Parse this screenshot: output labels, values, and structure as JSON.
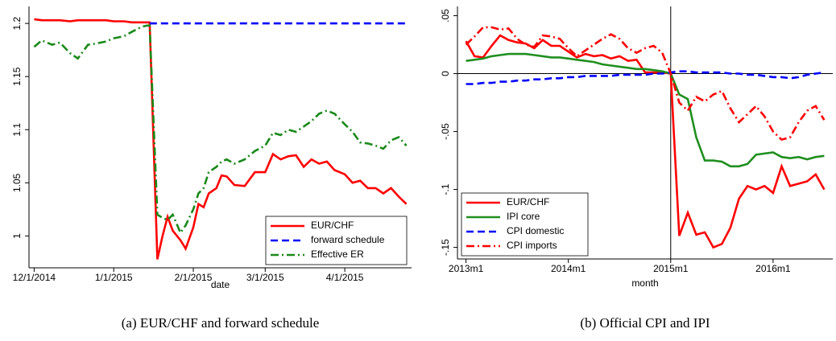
{
  "chart_data": [
    {
      "type": "line",
      "caption": "(a) EUR/CHF and forward schedule",
      "x_label": "date",
      "x": [
        "2014-12-01",
        "2014-12-04",
        "2014-12-08",
        "2014-12-11",
        "2014-12-15",
        "2014-12-18",
        "2014-12-22",
        "2014-12-25",
        "2014-12-29",
        "2015-01-01",
        "2015-01-05",
        "2015-01-08",
        "2015-01-12",
        "2015-01-14",
        "2015-01-15",
        "2015-01-18",
        "2015-01-20",
        "2015-01-22",
        "2015-01-24",
        "2015-01-27",
        "2015-01-29",
        "2015-02-01",
        "2015-02-03",
        "2015-02-05",
        "2015-02-07",
        "2015-02-10",
        "2015-02-12",
        "2015-02-14",
        "2015-02-17",
        "2015-02-21",
        "2015-02-25",
        "2015-03-01",
        "2015-03-04",
        "2015-03-07",
        "2015-03-10",
        "2015-03-13",
        "2015-03-16",
        "2015-03-19",
        "2015-03-22",
        "2015-03-25",
        "2015-03-28",
        "2015-04-01",
        "2015-04-04",
        "2015-04-07",
        "2015-04-10",
        "2015-04-13",
        "2015-04-16",
        "2015-04-19",
        "2015-04-22",
        "2015-04-25"
      ],
      "series": [
        {
          "name": "EUR/CHF",
          "color": "#ff0000",
          "linestyle": "solid",
          "values": [
            1.204,
            1.203,
            1.203,
            1.203,
            1.202,
            1.203,
            1.203,
            1.203,
            1.203,
            1.202,
            1.202,
            1.201,
            1.201,
            1.201,
            1.201,
            0.978,
            1.0,
            1.018,
            1.005,
            0.996,
            0.988,
            1.008,
            1.03,
            1.027,
            1.04,
            1.045,
            1.057,
            1.056,
            1.048,
            1.047,
            1.06,
            1.06,
            1.077,
            1.072,
            1.075,
            1.076,
            1.065,
            1.072,
            1.068,
            1.07,
            1.062,
            1.058,
            1.05,
            1.052,
            1.045,
            1.045,
            1.04,
            1.045,
            1.037,
            1.03
          ]
        },
        {
          "name": "forward schedule",
          "color": "#0000ff",
          "linestyle": "dash",
          "values": [
            null,
            null,
            null,
            null,
            null,
            null,
            null,
            null,
            null,
            null,
            null,
            null,
            null,
            null,
            1.2,
            1.2,
            1.2,
            1.2,
            1.2,
            1.2,
            1.2,
            1.2,
            1.2,
            1.2,
            1.2,
            1.2,
            1.2,
            1.2,
            1.2,
            1.2,
            1.2,
            1.2,
            1.2,
            1.2,
            1.2,
            1.2,
            1.2,
            1.2,
            1.2,
            1.2,
            1.2,
            1.2,
            1.2,
            1.2,
            1.2,
            1.2,
            1.2,
            1.2,
            1.2,
            1.2
          ]
        },
        {
          "name": "Effective ER",
          "color": "#1a8a1a",
          "linestyle": "dashdot",
          "values": [
            1.178,
            1.184,
            1.18,
            1.182,
            1.172,
            1.167,
            1.18,
            1.181,
            1.183,
            1.186,
            1.188,
            1.192,
            1.197,
            1.198,
            1.198,
            1.02,
            1.017,
            1.015,
            1.02,
            1.003,
            1.01,
            1.025,
            1.04,
            1.045,
            1.06,
            1.065,
            1.07,
            1.072,
            1.068,
            1.072,
            1.08,
            1.085,
            1.097,
            1.095,
            1.1,
            1.098,
            1.103,
            1.108,
            1.115,
            1.118,
            1.115,
            1.105,
            1.098,
            1.088,
            1.087,
            1.085,
            1.082,
            1.09,
            1.093,
            1.085
          ]
        }
      ],
      "xlim": [
        "2014-11-29",
        "2015-04-27"
      ],
      "xticks": [
        {
          "value": "2014-12-01",
          "label": "12/1/2014"
        },
        {
          "value": "2015-01-01",
          "label": "1/1/2015"
        },
        {
          "value": "2015-02-01",
          "label": "2/1/2015"
        },
        {
          "value": "2015-03-01",
          "label": "3/1/2015"
        },
        {
          "value": "2015-04-01",
          "label": "4/1/2015"
        }
      ],
      "ylim": [
        0.97,
        1.216
      ],
      "yticks": [
        1,
        1.05,
        1.1,
        1.15,
        1.2
      ],
      "legend": "lower right"
    },
    {
      "type": "line",
      "caption": "(b) Official CPI and IPI",
      "x_label": "month",
      "x": [
        "2013m1",
        "2013m2",
        "2013m3",
        "2013m4",
        "2013m5",
        "2013m6",
        "2013m7",
        "2013m8",
        "2013m9",
        "2013m10",
        "2013m11",
        "2013m12",
        "2014m1",
        "2014m2",
        "2014m3",
        "2014m4",
        "2014m5",
        "2014m6",
        "2014m7",
        "2014m8",
        "2014m9",
        "2014m10",
        "2014m11",
        "2014m12",
        "2015m1",
        "2015m2",
        "2015m3",
        "2015m4",
        "2015m5",
        "2015m6",
        "2015m7",
        "2015m8",
        "2015m9",
        "2015m10",
        "2015m11",
        "2015m12",
        "2016m1",
        "2016m2",
        "2016m3",
        "2016m4",
        "2016m5",
        "2016m6",
        "2016m7"
      ],
      "series": [
        {
          "name": "EUR/CHF",
          "color": "#ff0000",
          "linestyle": "solid",
          "values": [
            0.028,
            0.015,
            0.014,
            0.024,
            0.033,
            0.029,
            0.027,
            0.026,
            0.022,
            0.029,
            0.024,
            0.024,
            0.019,
            0.014,
            0.017,
            0.015,
            0.016,
            0.013,
            0.015,
            0.011,
            0.012,
            0.001,
            0.001,
            0.001,
            0,
            -0.14,
            -0.12,
            -0.139,
            -0.137,
            -0.15,
            -0.147,
            -0.133,
            -0.108,
            -0.097,
            -0.1,
            -0.097,
            -0.103,
            -0.08,
            -0.097,
            -0.095,
            -0.093,
            -0.087,
            -0.1
          ]
        },
        {
          "name": "IPI core",
          "color": "#1f8f1f",
          "linestyle": "solid",
          "values": [
            0.011,
            0.012,
            0.013,
            0.015,
            0.016,
            0.017,
            0.017,
            0.017,
            0.016,
            0.015,
            0.014,
            0.014,
            0.013,
            0.012,
            0.011,
            0.01,
            0.008,
            0.007,
            0.006,
            0.005,
            0.004,
            0.004,
            0.003,
            0.002,
            0,
            -0.018,
            -0.022,
            -0.055,
            -0.075,
            -0.075,
            -0.076,
            -0.08,
            -0.08,
            -0.078,
            -0.07,
            -0.069,
            -0.068,
            -0.072,
            -0.073,
            -0.072,
            -0.074,
            -0.072,
            -0.071
          ]
        },
        {
          "name": "CPI domestic",
          "color": "#0000ff",
          "linestyle": "dash",
          "values": [
            -0.009,
            -0.009,
            -0.008,
            -0.008,
            -0.007,
            -0.007,
            -0.006,
            -0.006,
            -0.005,
            -0.005,
            -0.004,
            -0.004,
            -0.003,
            -0.003,
            -0.002,
            -0.002,
            -0.002,
            -0.002,
            -0.001,
            -0.001,
            -0.001,
            -0.001,
            0,
            0,
            0.001,
            0.002,
            0.002,
            0.001,
            0.001,
            0.001,
            0.001,
            0,
            0,
            -0.001,
            -0.001,
            -0.002,
            -0.003,
            -0.003,
            -0.004,
            -0.003,
            -0.001,
            0,
            0.001
          ]
        },
        {
          "name": "CPI imports",
          "color": "#ff0000",
          "linestyle": "dashdot",
          "values": [
            0.025,
            0.032,
            0.04,
            0.04,
            0.038,
            0.039,
            0.03,
            0.025,
            0.023,
            0.033,
            0.032,
            0.03,
            0.022,
            0.015,
            0.02,
            0.025,
            0.03,
            0.034,
            0.03,
            0.022,
            0.018,
            0.022,
            0.024,
            0.018,
            0,
            -0.025,
            -0.032,
            -0.02,
            -0.024,
            -0.018,
            -0.015,
            -0.03,
            -0.042,
            -0.035,
            -0.028,
            -0.037,
            -0.05,
            -0.057,
            -0.055,
            -0.042,
            -0.032,
            -0.028,
            -0.04
          ]
        }
      ],
      "xlim": [
        "2012m12",
        "2016m8"
      ],
      "xticks": [
        "2013m1",
        "2014m1",
        "2015m1",
        "2016m1"
      ],
      "ylim": [
        -0.16,
        0.058
      ],
      "yticks": [
        {
          "value": -0.15,
          "label": "-.15"
        },
        {
          "value": -0.1,
          "label": "-.1"
        },
        {
          "value": -0.05,
          "label": "-.05"
        },
        0,
        {
          "value": 0.05,
          "label": ".05"
        }
      ],
      "hline": 0,
      "vline": "2015m1",
      "legend": "lower left"
    }
  ]
}
